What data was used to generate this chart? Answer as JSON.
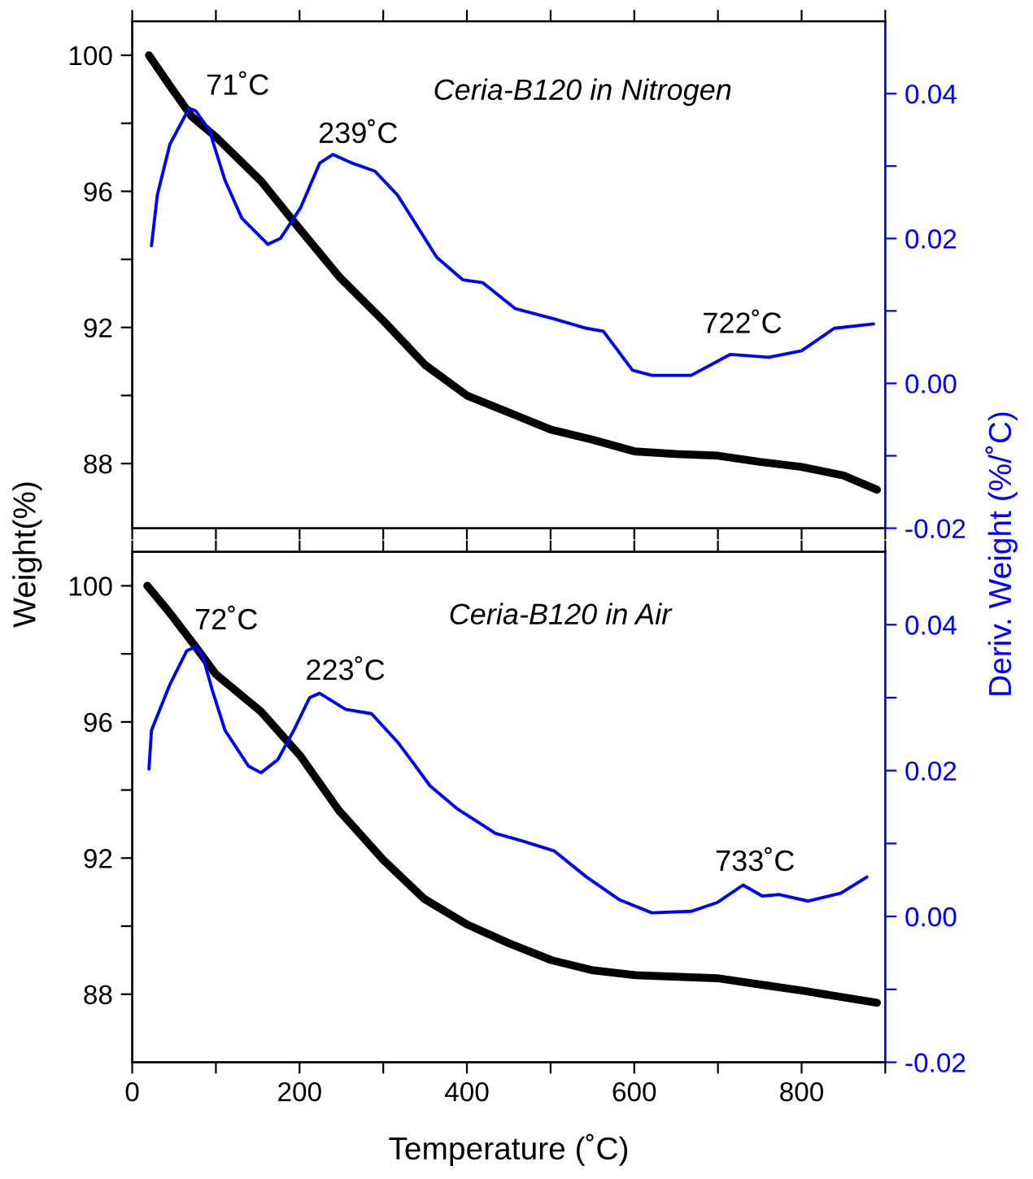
{
  "chart_data": [
    {
      "type": "line",
      "title": "Ceria-B120 in Nitrogen",
      "ylabel": "Weight(%)",
      "y2label": "Deriv. Weight (%/˚C)",
      "tick_labels": "y",
      "xlim": [
        0,
        900
      ],
      "xticks": [
        0,
        {
          "value": 100,
          "label": null
        },
        200,
        {
          "value": 300,
          "label": null
        },
        400,
        {
          "value": 500,
          "label": null
        },
        600,
        {
          "value": 700,
          "label": null
        },
        800,
        {
          "value": 900,
          "label": null
        }
      ],
      "ylim": [
        86.1,
        101
      ],
      "yticks": [
        88,
        {
          "value": 90,
          "label": null
        },
        92,
        {
          "value": 94,
          "label": null
        },
        96,
        {
          "value": 98,
          "label": null
        },
        100
      ],
      "y2lim": [
        -0.02,
        0.05
      ],
      "y2ticks": [
        {
          "value": -0.02,
          "label": "-0.02"
        },
        {
          "value": -0.01,
          "label": null
        },
        {
          "value": 0.0,
          "label": "0.00"
        },
        {
          "value": 0.01,
          "label": null
        },
        {
          "value": 0.02,
          "label": "0.02"
        },
        {
          "value": 0.03,
          "label": null
        },
        {
          "value": 0.04,
          "label": "0.04"
        }
      ],
      "series": [
        {
          "color": "#000000",
          "x": [
            20,
            45,
            71,
            100,
            154,
            200,
            247,
            300,
            350,
            400,
            450,
            500,
            550,
            600,
            650,
            700,
            750,
            800,
            850,
            890
          ],
          "values": [
            100,
            99.1,
            98.2,
            97.6,
            96.3,
            94.9,
            93.5,
            92.2,
            90.9,
            90.0,
            89.5,
            89.0,
            88.7,
            88.36,
            88.28,
            88.23,
            88.05,
            87.9,
            87.65,
            87.23
          ]
        },
        {
          "color": "#0000ff",
          "axis": "y2",
          "x": [
            23,
            30,
            45,
            68,
            76,
            92,
            111,
            131,
            162,
            177,
            201,
            224,
            240,
            263,
            290,
            317,
            364,
            395,
            419,
            458,
            504,
            543,
            563,
            598,
            621,
            668,
            715,
            761,
            800,
            839,
            886
          ],
          "values": [
            0.019,
            0.026,
            0.033,
            0.038,
            0.0376,
            0.035,
            0.028,
            0.0228,
            0.0192,
            0.02,
            0.0242,
            0.0304,
            0.0316,
            0.0304,
            0.0293,
            0.026,
            0.0174,
            0.0143,
            0.0139,
            0.0103,
            0.0089,
            0.0076,
            0.0072,
            0.0018,
            0.0011,
            0.0011,
            0.004,
            0.0036,
            0.0045,
            0.0076,
            0.0082
          ]
        }
      ],
      "annotations": [
        "71˚C",
        "239˚C",
        "722˚C"
      ]
    },
    {
      "type": "line",
      "title": "Ceria-B120 in Air",
      "xlabel": "Temperature (˚C)",
      "xlim": [
        0,
        900
      ],
      "xticks": [
        0,
        {
          "value": 100,
          "label": null
        },
        200,
        {
          "value": 300,
          "label": null
        },
        400,
        {
          "value": 500,
          "label": null
        },
        600,
        {
          "value": 700,
          "label": null
        },
        800,
        {
          "value": 900,
          "label": null
        }
      ],
      "ylim": [
        86,
        101
      ],
      "yticks": [
        88,
        {
          "value": 90,
          "label": null
        },
        92,
        {
          "value": 94,
          "label": null
        },
        96,
        {
          "value": 98,
          "label": null
        },
        100
      ],
      "y2lim": [
        -0.02,
        0.05
      ],
      "y2ticks": [
        {
          "value": -0.02,
          "label": "-0.02"
        },
        {
          "value": -0.01,
          "label": null
        },
        {
          "value": 0.0,
          "label": "0.00"
        },
        {
          "value": 0.01,
          "label": null
        },
        {
          "value": 0.02,
          "label": "0.02"
        },
        {
          "value": 0.03,
          "label": null
        },
        {
          "value": 0.04,
          "label": "0.04"
        }
      ],
      "series": [
        {
          "color": "#000000",
          "x": [
            18,
            45,
            76,
            100,
            154,
            201,
            247,
            300,
            349,
            400,
            450,
            501,
            551,
            602,
            699,
            746,
            802,
            890
          ],
          "values": [
            100,
            99.2,
            98.2,
            97.4,
            96.3,
            95.0,
            93.4,
            91.95,
            90.8,
            90.05,
            89.5,
            89.0,
            88.7,
            88.56,
            88.47,
            88.3,
            88.1,
            87.75
          ]
        },
        {
          "color": "#0000ff",
          "axis": "y2",
          "x": [
            20,
            23,
            45,
            65,
            76,
            84,
            96,
            111,
            139,
            154,
            174,
            193,
            212,
            224,
            255,
            286,
            318,
            356,
            388,
            434,
            465,
            504,
            543,
            582,
            621,
            668,
            699,
            730,
            753,
            773,
            808,
            847,
            878
          ],
          "values": [
            0.0202,
            0.0255,
            0.0318,
            0.0364,
            0.037,
            0.0358,
            0.0309,
            0.0255,
            0.0206,
            0.0197,
            0.0215,
            0.0255,
            0.03,
            0.0306,
            0.0284,
            0.0278,
            0.0238,
            0.0179,
            0.0148,
            0.0114,
            0.0104,
            0.009,
            0.0054,
            0.0023,
            0.0005,
            0.0007,
            0.0019,
            0.0043,
            0.0028,
            0.003,
            0.0021,
            0.0032,
            0.0054
          ]
        }
      ],
      "annotations": [
        "72˚C",
        "223˚C",
        "733˚C"
      ]
    }
  ]
}
